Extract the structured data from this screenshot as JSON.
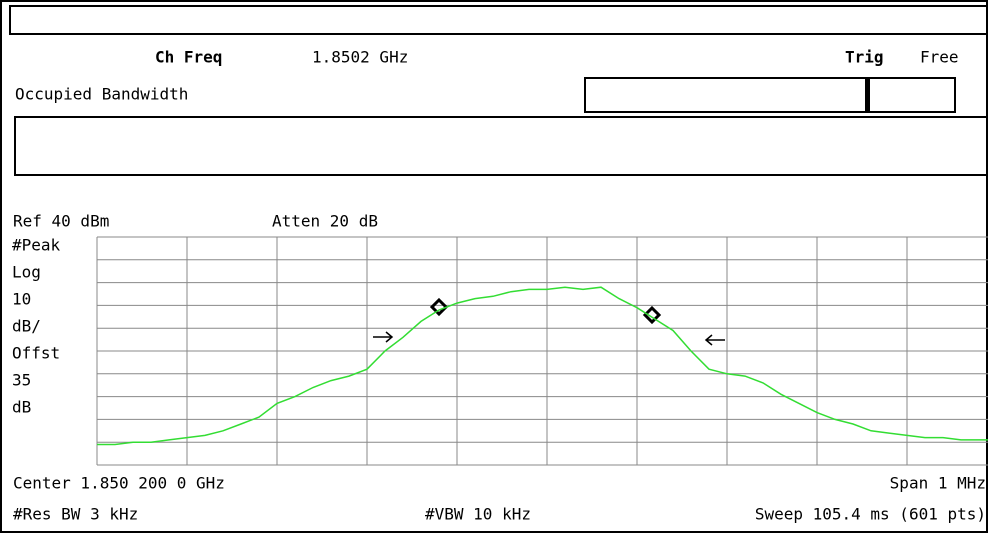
{
  "header": {
    "ch_freq_label": "Ch Freq",
    "ch_freq": "1.8502 GHz",
    "trig_label": "Trig",
    "trig": "Free",
    "mode": "Occupied Bandwidth"
  },
  "display": {
    "ref": "Ref 40 dBm",
    "atten": "Atten 20 dB",
    "left_labels": [
      "#Peak",
      "Log",
      "10",
      "dB/",
      "Offst",
      "35",
      "dB"
    ],
    "center": "Center 1.850 200 0 GHz",
    "span": "Span 1 MHz",
    "res_bw": "#Res BW 3 kHz",
    "vbw": "#VBW 10 kHz",
    "sweep": "Sweep 105.4 ms (601 pts)"
  },
  "trace": {
    "color": "#33dd33",
    "ylim": [
      -60,
      40
    ],
    "values": [
      -51,
      -51,
      -50,
      -50,
      -49,
      -48,
      -47,
      -45,
      -42,
      -39,
      -33,
      -30,
      -26,
      -23,
      -21,
      -18,
      -10,
      -4,
      3,
      8,
      11,
      13,
      14,
      16,
      17,
      17,
      18,
      17,
      18,
      13,
      9,
      4,
      -1,
      -10,
      -18,
      -20,
      -21,
      -24,
      -29,
      -33,
      -37,
      -40,
      -42,
      -45,
      -46,
      -47,
      -48,
      -48,
      -49,
      -49,
      -49
    ]
  }
}
